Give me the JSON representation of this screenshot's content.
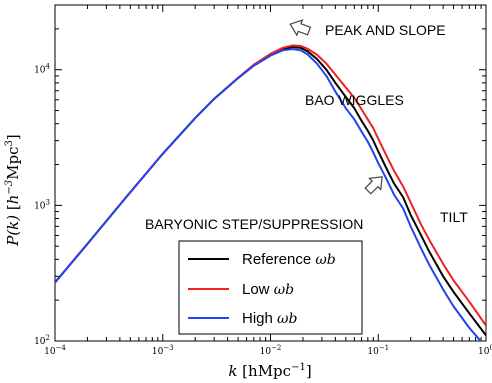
{
  "chart_data": {
    "type": "line",
    "xlabel": "k [hMpc⁻¹]",
    "ylabel": "P(k) [h⁻³Mpc³]",
    "xscale": "log",
    "yscale": "log",
    "xlim": [
      0.0001,
      1
    ],
    "ylim": [
      100,
      30000
    ],
    "x_ticks": [
      {
        "value": 0.0001,
        "base": "10",
        "exp": "−4"
      },
      {
        "value": 0.001,
        "base": "10",
        "exp": "−3"
      },
      {
        "value": 0.01,
        "base": "10",
        "exp": "−2"
      },
      {
        "value": 0.1,
        "base": "10",
        "exp": "−1"
      },
      {
        "value": 1,
        "base": "10",
        "exp": "0"
      }
    ],
    "y_ticks": [
      {
        "value": 100,
        "base": "10",
        "exp": "2"
      },
      {
        "value": 1000,
        "base": "10",
        "exp": "3"
      },
      {
        "value": 10000,
        "base": "10",
        "exp": "4"
      }
    ],
    "legend_position": "lower-center",
    "series": [
      {
        "name": "Reference",
        "name_sub": "ωb",
        "color": "#000000",
        "points": [
          [
            0.0001,
            270
          ],
          [
            0.0002,
            520
          ],
          [
            0.0005,
            1250
          ],
          [
            0.001,
            2400
          ],
          [
            0.002,
            4400
          ],
          [
            0.003,
            6100
          ],
          [
            0.005,
            8700
          ],
          [
            0.007,
            10800
          ],
          [
            0.01,
            12900
          ],
          [
            0.013,
            14200
          ],
          [
            0.016,
            14700
          ],
          [
            0.019,
            14500
          ],
          [
            0.022,
            13700
          ],
          [
            0.027,
            12000
          ],
          [
            0.033,
            10000
          ],
          [
            0.04,
            8000
          ],
          [
            0.05,
            6300
          ],
          [
            0.06,
            5200
          ],
          [
            0.07,
            4200
          ],
          [
            0.08,
            3550
          ],
          [
            0.09,
            3000
          ],
          [
            0.1,
            2500
          ],
          [
            0.12,
            1850
          ],
          [
            0.14,
            1450
          ],
          [
            0.17,
            1150
          ],
          [
            0.2,
            850
          ],
          [
            0.25,
            600
          ],
          [
            0.3,
            450
          ],
          [
            0.4,
            300
          ],
          [
            0.5,
            230
          ],
          [
            0.7,
            160
          ],
          [
            1,
            110
          ]
        ]
      },
      {
        "name": "Low",
        "name_sub": "ωb",
        "color": "#ee2222",
        "points": [
          [
            0.0001,
            270
          ],
          [
            0.0002,
            520
          ],
          [
            0.0005,
            1250
          ],
          [
            0.001,
            2400
          ],
          [
            0.002,
            4400
          ],
          [
            0.003,
            6100
          ],
          [
            0.005,
            8700
          ],
          [
            0.007,
            10900
          ],
          [
            0.01,
            13100
          ],
          [
            0.013,
            14500
          ],
          [
            0.016,
            15100
          ],
          [
            0.019,
            15000
          ],
          [
            0.022,
            14300
          ],
          [
            0.027,
            12900
          ],
          [
            0.033,
            11100
          ],
          [
            0.04,
            9200
          ],
          [
            0.05,
            7400
          ],
          [
            0.06,
            6200
          ],
          [
            0.07,
            5100
          ],
          [
            0.08,
            4300
          ],
          [
            0.09,
            3700
          ],
          [
            0.1,
            3100
          ],
          [
            0.12,
            2300
          ],
          [
            0.14,
            1800
          ],
          [
            0.17,
            1380
          ],
          [
            0.2,
            1050
          ],
          [
            0.25,
            720
          ],
          [
            0.3,
            550
          ],
          [
            0.4,
            370
          ],
          [
            0.5,
            280
          ],
          [
            0.7,
            195
          ],
          [
            1,
            130
          ]
        ]
      },
      {
        "name": "High",
        "name_sub": "ωb",
        "color": "#2244ee",
        "points": [
          [
            0.0001,
            270
          ],
          [
            0.0002,
            520
          ],
          [
            0.0005,
            1250
          ],
          [
            0.001,
            2400
          ],
          [
            0.002,
            4400
          ],
          [
            0.003,
            6100
          ],
          [
            0.005,
            8650
          ],
          [
            0.007,
            10700
          ],
          [
            0.01,
            12700
          ],
          [
            0.013,
            13900
          ],
          [
            0.016,
            14200
          ],
          [
            0.019,
            13900
          ],
          [
            0.022,
            13000
          ],
          [
            0.027,
            11100
          ],
          [
            0.033,
            9000
          ],
          [
            0.04,
            6900
          ],
          [
            0.05,
            5200
          ],
          [
            0.06,
            4300
          ],
          [
            0.07,
            3500
          ],
          [
            0.08,
            2950
          ],
          [
            0.09,
            2450
          ],
          [
            0.1,
            2050
          ],
          [
            0.12,
            1550
          ],
          [
            0.14,
            1200
          ],
          [
            0.17,
            950
          ],
          [
            0.2,
            700
          ],
          [
            0.25,
            480
          ],
          [
            0.3,
            360
          ],
          [
            0.4,
            240
          ],
          [
            0.5,
            180
          ],
          [
            0.7,
            125
          ],
          [
            1,
            90
          ]
        ]
      }
    ],
    "annotations": [
      {
        "id": "peak",
        "text": "PEAK AND SLOPE"
      },
      {
        "id": "bao",
        "text": "BAO WIGGLES"
      },
      {
        "id": "baryonic",
        "text": "BARYONIC STEP/SUPPRESSION"
      },
      {
        "id": "tilt",
        "text": "TILT"
      }
    ]
  }
}
